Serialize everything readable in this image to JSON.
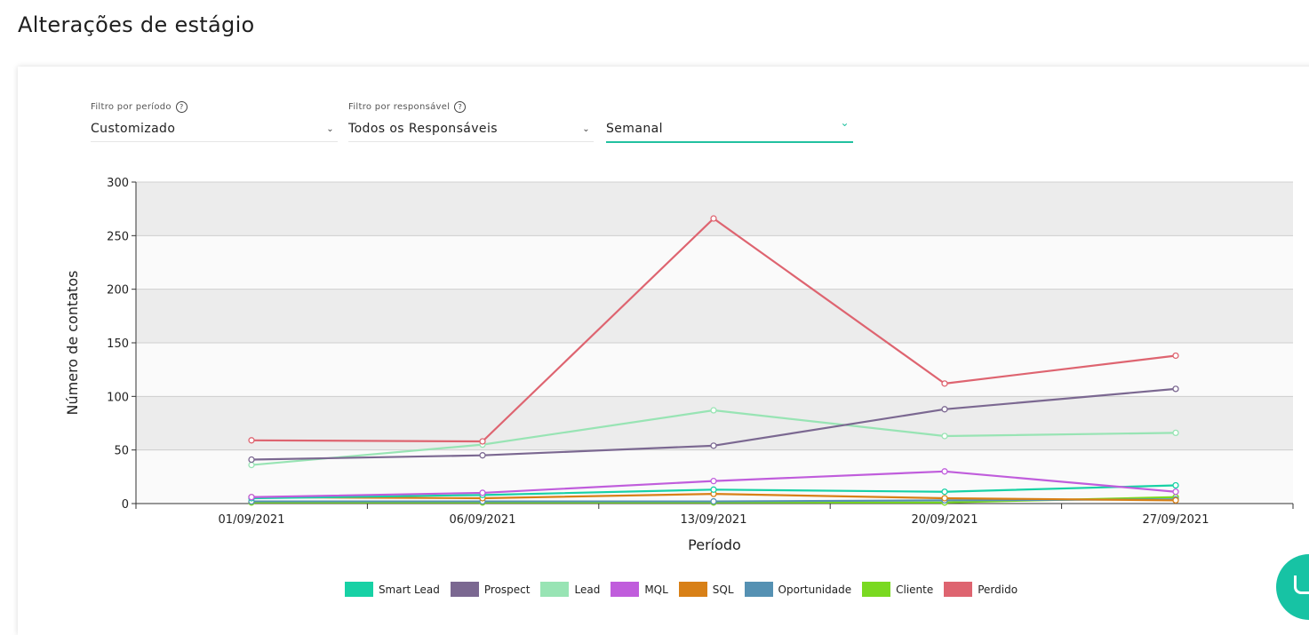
{
  "page": {
    "title": "Alterações de estágio"
  },
  "filters": {
    "period": {
      "label": "Filtro por período",
      "value": "Customizado",
      "help_glyph": "?"
    },
    "responsible": {
      "label": "Filtro por responsável",
      "value": "Todos os Responsáveis",
      "help_glyph": "?"
    },
    "granularity": {
      "value": "Semanal"
    }
  },
  "chat_widget": {
    "icon": "chat-bubble-icon",
    "color": "#17c3a4"
  },
  "chart_data": {
    "type": "line",
    "categories": [
      "01/09/2021",
      "06/09/2021",
      "13/09/2021",
      "20/09/2021",
      "27/09/2021"
    ],
    "xlabel": "Período",
    "ylabel": "Número de contatos",
    "ylim": [
      0,
      300
    ],
    "yticks": [
      0,
      50,
      100,
      150,
      200,
      250,
      300
    ],
    "grid": true,
    "legend_position": "bottom",
    "series": [
      {
        "name": "Smart Lead",
        "color": "#17d1a5",
        "values": [
          5,
          8,
          13,
          11,
          17
        ]
      },
      {
        "name": "Prospect",
        "color": "#7b6891",
        "values": [
          41,
          45,
          54,
          88,
          107
        ]
      },
      {
        "name": "Lead",
        "color": "#98e4b4",
        "values": [
          36,
          55,
          87,
          63,
          66
        ]
      },
      {
        "name": "MQL",
        "color": "#c05ddc",
        "values": [
          6,
          10,
          21,
          30,
          11
        ]
      },
      {
        "name": "SQL",
        "color": "#d88017",
        "values": [
          6,
          5,
          9,
          5,
          3
        ]
      },
      {
        "name": "Oportunidade",
        "color": "#5591b3",
        "values": [
          2,
          2,
          2,
          3,
          4
        ]
      },
      {
        "name": "Cliente",
        "color": "#7ad921",
        "values": [
          1,
          1,
          1,
          1,
          6
        ]
      },
      {
        "name": "Perdido",
        "color": "#de6470",
        "values": [
          59,
          58,
          266,
          112,
          138
        ]
      }
    ]
  }
}
